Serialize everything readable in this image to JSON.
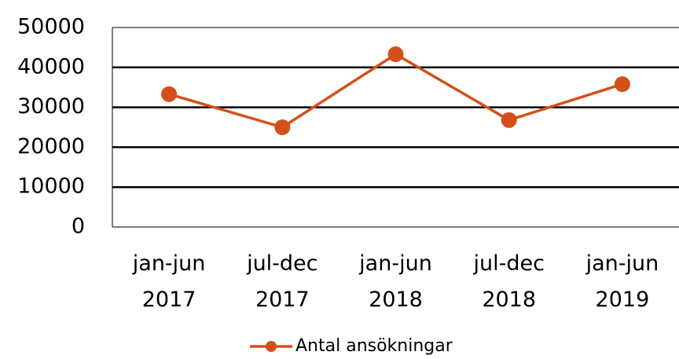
{
  "chart_data": {
    "type": "line",
    "categories": [
      "jan-jun 2017",
      "jul-dec 2017",
      "jan-jun 2018",
      "jul-dec 2018",
      "jan-jun 2019"
    ],
    "series": [
      {
        "name": "Antal ansökningar",
        "color": "#d4501a",
        "values": [
          33300,
          25000,
          43300,
          26800,
          35800
        ]
      }
    ],
    "ylim": [
      0,
      50000
    ],
    "yticks": [
      0,
      10000,
      20000,
      30000,
      40000,
      50000
    ],
    "grid": true,
    "legend": "bottom"
  }
}
